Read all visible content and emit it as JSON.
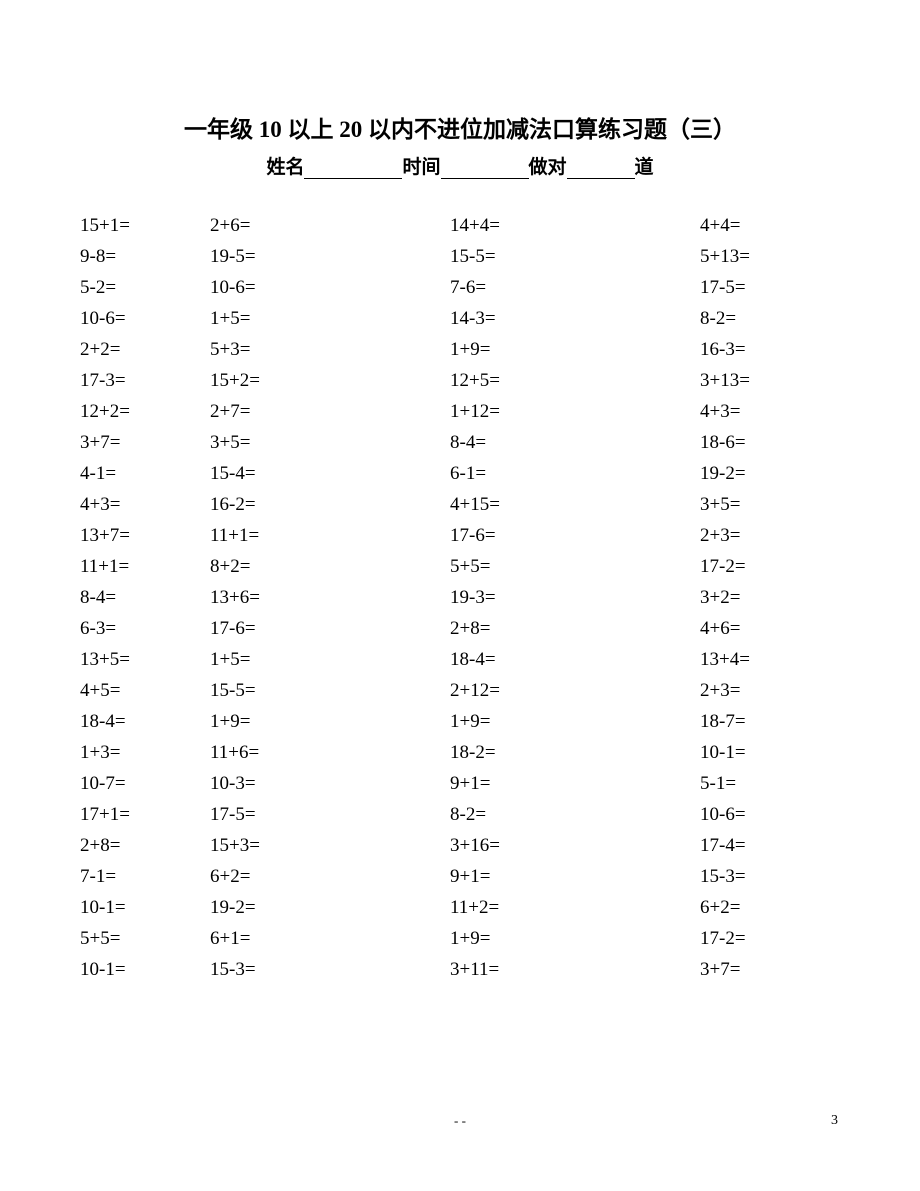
{
  "title": "一年级 10 以上 20 以内不进位加减法口算练习题（三）",
  "subtitle": {
    "label_name": "姓名",
    "label_time": "时间",
    "label_count_prefix": "做对",
    "label_count_suffix": "道"
  },
  "problems": {
    "columns": 4,
    "rows": [
      [
        "15+1=",
        "2+6=",
        "14+4=",
        "4+4="
      ],
      [
        "9-8=",
        "19-5=",
        "15-5=",
        "5+13="
      ],
      [
        "5-2=",
        "10-6=",
        "7-6=",
        "17-5="
      ],
      [
        "10-6=",
        "1+5=",
        "14-3=",
        "8-2="
      ],
      [
        "2+2=",
        "5+3=",
        "1+9=",
        "16-3="
      ],
      [
        "17-3=",
        "15+2=",
        "12+5=",
        "3+13="
      ],
      [
        "12+2=",
        "2+7=",
        "1+12=",
        "4+3="
      ],
      [
        "3+7=",
        "3+5=",
        "8-4=",
        "18-6="
      ],
      [
        "4-1=",
        "15-4=",
        "6-1=",
        "19-2="
      ],
      [
        "4+3=",
        "16-2=",
        "4+15=",
        "3+5="
      ],
      [
        "13+7=",
        "11+1=",
        "17-6=",
        "2+3="
      ],
      [
        "11+1=",
        "8+2=",
        "5+5=",
        "17-2="
      ],
      [
        "8-4=",
        "13+6=",
        "19-3=",
        "3+2="
      ],
      [
        "6-3=",
        "17-6=",
        "2+8=",
        "4+6="
      ],
      [
        "13+5=",
        "1+5=",
        "18-4=",
        "13+4="
      ],
      [
        "4+5=",
        "15-5=",
        "2+12=",
        "2+3="
      ],
      [
        "18-4=",
        "1+9=",
        "1+9=",
        "18-7="
      ],
      [
        "1+3=",
        "11+6=",
        "18-2=",
        "10-1="
      ],
      [
        "10-7=",
        "10-3=",
        "9+1=",
        "5-1="
      ],
      [
        "17+1=",
        "17-5=",
        "8-2=",
        "10-6="
      ],
      [
        "2+8=",
        "15+3=",
        "3+16=",
        "17-4="
      ],
      [
        "7-1=",
        "6+2=",
        "9+1=",
        "15-3="
      ],
      [
        "10-1=",
        "19-2=",
        "11+2=",
        "6+2="
      ],
      [
        "5+5=",
        "6+1=",
        "1+9=",
        "17-2="
      ],
      [
        "10-1=",
        "15-3=",
        "3+11=",
        "3+7="
      ]
    ]
  },
  "footer_mark": "- -",
  "page_number": "3"
}
